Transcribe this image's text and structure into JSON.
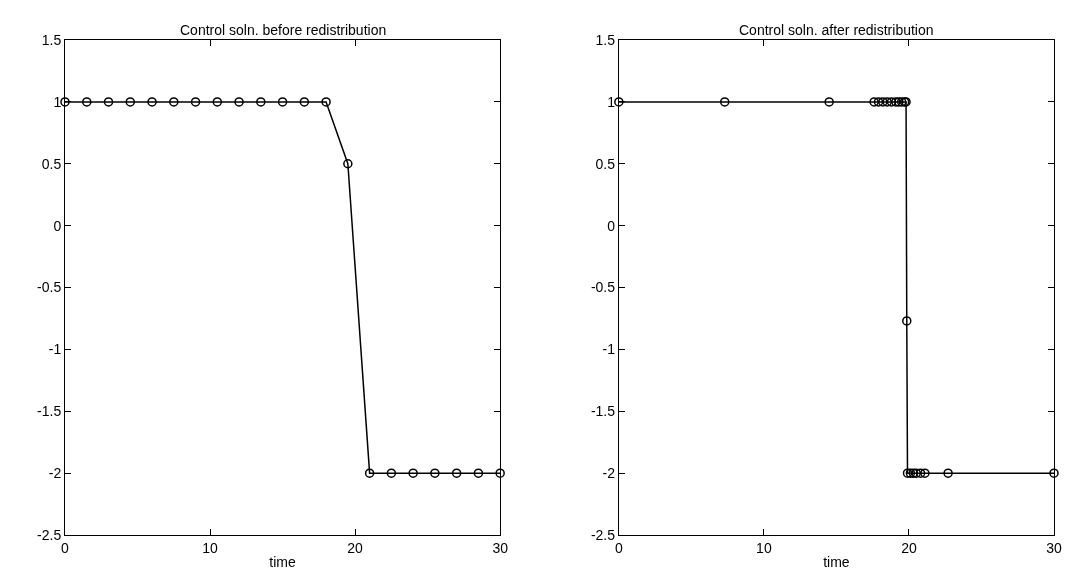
{
  "chart_data": [
    {
      "type": "line",
      "title": "Control soln. before redistribution",
      "xlabel": "time",
      "marker": "circle",
      "line_style": "solid",
      "x": [
        0,
        1.5,
        3,
        4.5,
        6,
        7.5,
        9,
        10.5,
        12,
        13.5,
        15,
        16.5,
        18,
        19.5,
        21,
        22.5,
        24,
        25.5,
        27,
        28.5,
        30
      ],
      "series": [
        {
          "color": "#000000",
          "values": [
            1,
            1,
            1,
            1,
            1,
            1,
            1,
            1,
            1,
            1,
            1,
            1,
            1,
            0.5,
            -2,
            -2,
            -2,
            -2,
            -2,
            -2,
            -2
          ]
        }
      ],
      "xlim": [
        0,
        30
      ],
      "xticks": [
        0,
        10,
        20,
        30
      ],
      "ylim": [
        -2.5,
        1.5
      ],
      "yticks": [
        -2.5,
        -2,
        -1.5,
        -1,
        -0.5,
        0,
        0.5,
        1,
        1.5
      ]
    },
    {
      "type": "line",
      "title": "Control soln. after redistribution",
      "xlabel": "time",
      "marker": "circle",
      "line_style": "solid",
      "x": [
        0,
        7.3,
        14.5,
        17.6,
        17.9,
        18.2,
        18.5,
        18.8,
        19.1,
        19.3,
        19.5,
        19.7,
        19.8,
        19.85,
        19.9,
        20.1,
        20.3,
        20.5,
        20.8,
        21.1,
        22.7,
        30
      ],
      "series": [
        {
          "color": "#000000",
          "values": [
            1,
            1,
            1,
            1,
            1,
            1,
            1,
            1,
            1,
            1,
            1,
            1,
            1,
            -0.77,
            -2,
            -2,
            -2,
            -2,
            -2,
            -2,
            -2,
            -2
          ]
        }
      ],
      "xlim": [
        0,
        30
      ],
      "xticks": [
        0,
        10,
        20,
        30
      ],
      "ylim": [
        -2.5,
        1.5
      ],
      "yticks": [
        -2.5,
        -2,
        -1.5,
        -1,
        -0.5,
        0,
        0.5,
        1,
        1.5
      ]
    }
  ]
}
